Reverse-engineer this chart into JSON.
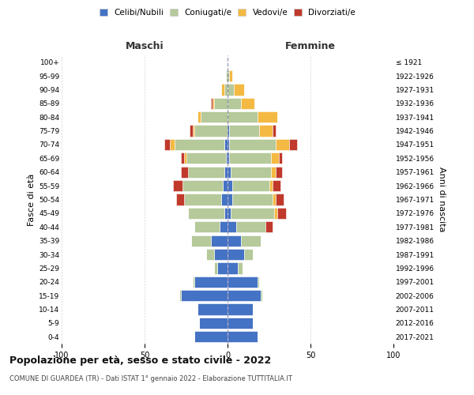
{
  "age_groups": [
    "0-4",
    "5-9",
    "10-14",
    "15-19",
    "20-24",
    "25-29",
    "30-34",
    "35-39",
    "40-44",
    "45-49",
    "50-54",
    "55-59",
    "60-64",
    "65-69",
    "70-74",
    "75-79",
    "80-84",
    "85-89",
    "90-94",
    "95-99",
    "100+"
  ],
  "birth_years": [
    "2017-2021",
    "2012-2016",
    "2007-2011",
    "2002-2006",
    "1997-2001",
    "1992-1996",
    "1987-1991",
    "1982-1986",
    "1977-1981",
    "1972-1976",
    "1967-1971",
    "1962-1966",
    "1957-1961",
    "1952-1956",
    "1947-1951",
    "1942-1946",
    "1937-1941",
    "1932-1936",
    "1927-1931",
    "1922-1926",
    "≤ 1921"
  ],
  "male": {
    "celibi": [
      20,
      17,
      18,
      28,
      20,
      6,
      8,
      10,
      5,
      2,
      4,
      3,
      2,
      1,
      2,
      0,
      0,
      0,
      0,
      0,
      0
    ],
    "coniugati": [
      0,
      0,
      0,
      1,
      1,
      2,
      5,
      12,
      15,
      22,
      22,
      24,
      22,
      24,
      30,
      20,
      16,
      8,
      2,
      1,
      0
    ],
    "vedovi": [
      0,
      0,
      0,
      0,
      0,
      0,
      0,
      0,
      0,
      0,
      0,
      0,
      0,
      1,
      3,
      1,
      2,
      1,
      2,
      0,
      0
    ],
    "divorziati": [
      0,
      0,
      0,
      0,
      0,
      0,
      0,
      0,
      0,
      0,
      5,
      6,
      4,
      2,
      3,
      2,
      0,
      1,
      0,
      0,
      0
    ]
  },
  "female": {
    "nubili": [
      18,
      15,
      15,
      20,
      18,
      6,
      10,
      8,
      5,
      2,
      3,
      3,
      2,
      1,
      1,
      1,
      0,
      0,
      0,
      0,
      0
    ],
    "coniugate": [
      0,
      0,
      0,
      1,
      1,
      3,
      5,
      12,
      18,
      26,
      24,
      22,
      24,
      25,
      28,
      18,
      18,
      8,
      4,
      1,
      0
    ],
    "vedove": [
      0,
      0,
      0,
      0,
      0,
      0,
      0,
      0,
      0,
      2,
      2,
      2,
      3,
      5,
      8,
      8,
      12,
      8,
      6,
      2,
      0
    ],
    "divorziate": [
      0,
      0,
      0,
      0,
      0,
      0,
      0,
      0,
      4,
      5,
      5,
      5,
      4,
      2,
      5,
      2,
      0,
      0,
      0,
      0,
      0
    ]
  },
  "colors": {
    "celibi": "#4472C4",
    "coniugati": "#B5C99A",
    "vedovi": "#F4B942",
    "divorziati": "#C0392B"
  },
  "xlim": 100,
  "title": "Popolazione per età, sesso e stato civile - 2022",
  "subtitle": "COMUNE DI GUARDEA (TR) - Dati ISTAT 1° gennaio 2022 - Elaborazione TUTTITALIA.IT",
  "ylabel_left": "Fasce di età",
  "ylabel_right": "Anni di nascita",
  "xlabel_left": "Maschi",
  "xlabel_right": "Femmine",
  "bg_color": "#FFFFFF",
  "grid_color": "#CCCCCC",
  "bar_edge_color": "#FFFFFF"
}
